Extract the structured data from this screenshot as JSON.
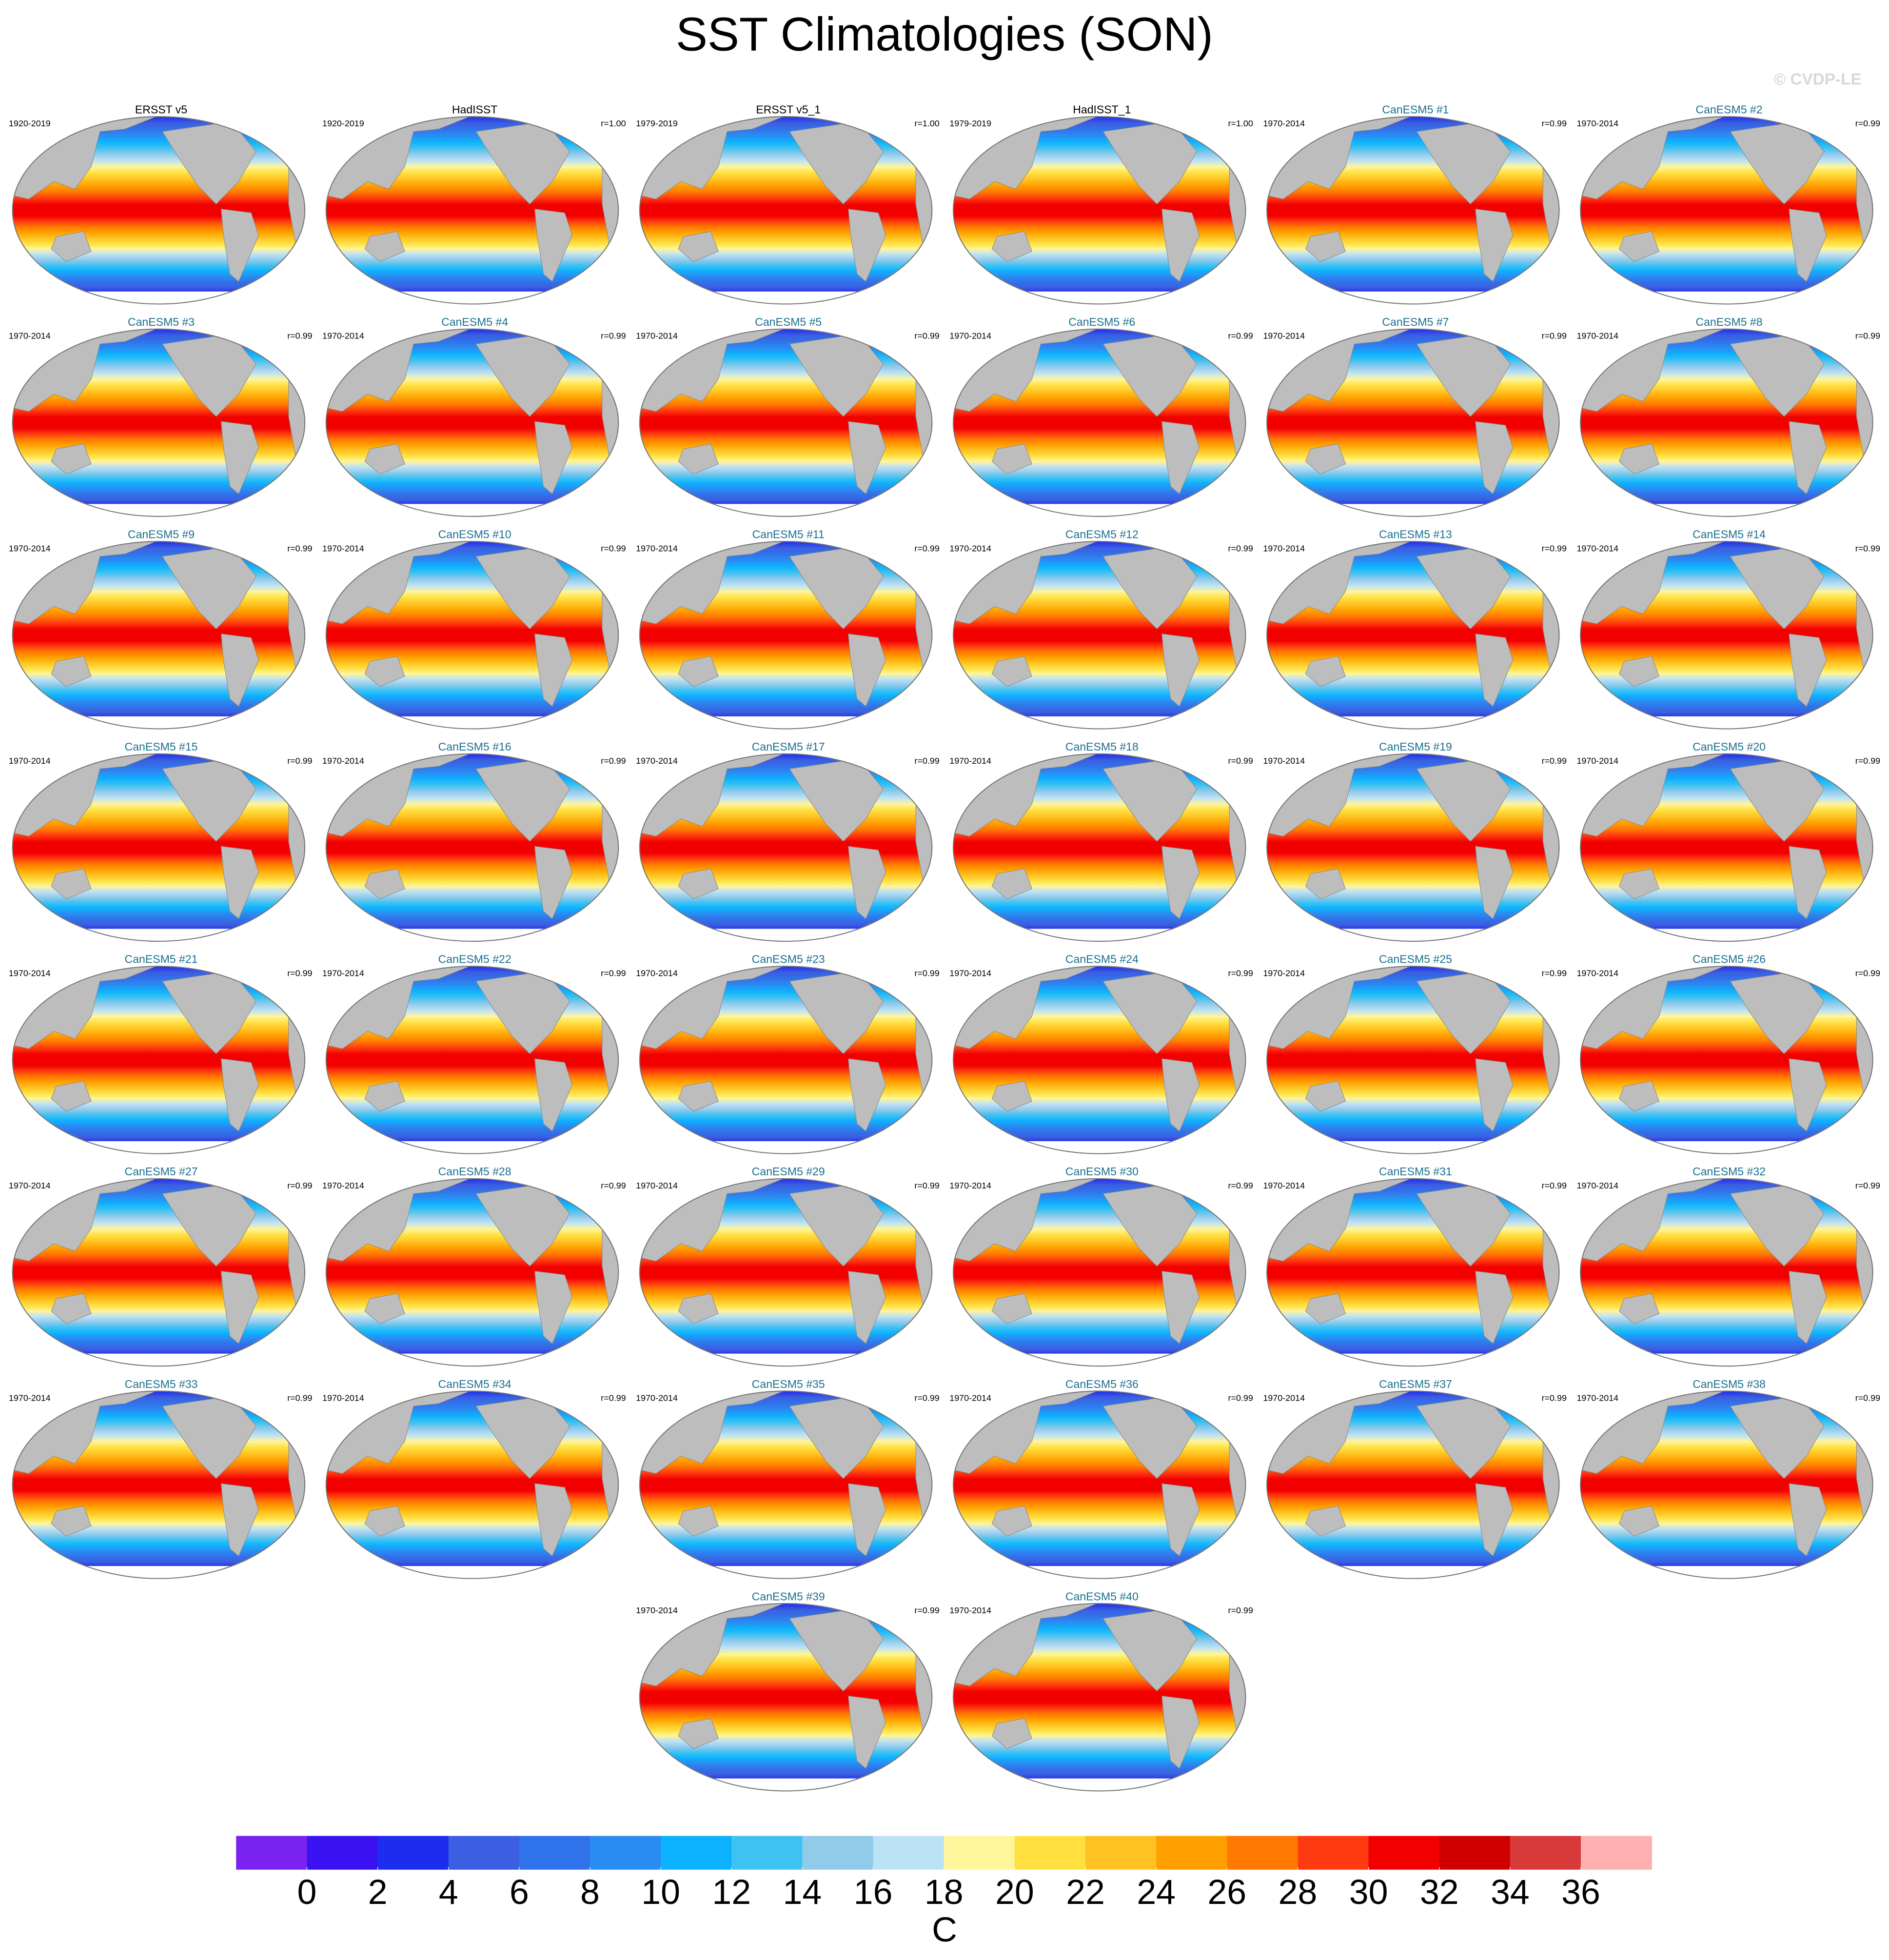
{
  "chart_data": {
    "type": "map-grid",
    "title": "SST Climatologies (SON)",
    "credit": "© CVDP-LE",
    "panels": [
      {
        "title": "ERSST v5",
        "period": "1920-2019",
        "title_color": "#000000"
      },
      {
        "title": "HadISST",
        "period": "1920-2019",
        "r": "r=1.00",
        "title_color": "#000000"
      },
      {
        "title": "ERSST v5_1",
        "period": "1979-2019",
        "r": "r=1.00",
        "title_color": "#000000"
      },
      {
        "title": "HadISST_1",
        "period": "1979-2019",
        "r": "r=1.00",
        "title_color": "#000000"
      },
      {
        "title": "CanESM5 #1",
        "period": "1970-2014",
        "r": "r=0.99",
        "title_color": "#1a6f8f"
      },
      {
        "title": "CanESM5 #2",
        "period": "1970-2014",
        "r": "r=0.99",
        "title_color": "#1a6f8f"
      },
      {
        "title": "CanESM5 #3",
        "period": "1970-2014",
        "r": "r=0.99",
        "title_color": "#1a6f8f"
      },
      {
        "title": "CanESM5 #4",
        "period": "1970-2014",
        "r": "r=0.99",
        "title_color": "#1a6f8f"
      },
      {
        "title": "CanESM5 #5",
        "period": "1970-2014",
        "r": "r=0.99",
        "title_color": "#1a6f8f"
      },
      {
        "title": "CanESM5 #6",
        "period": "1970-2014",
        "r": "r=0.99",
        "title_color": "#1a6f8f"
      },
      {
        "title": "CanESM5 #7",
        "period": "1970-2014",
        "r": "r=0.99",
        "title_color": "#1a6f8f"
      },
      {
        "title": "CanESM5 #8",
        "period": "1970-2014",
        "r": "r=0.99",
        "title_color": "#1a6f8f"
      },
      {
        "title": "CanESM5 #9",
        "period": "1970-2014",
        "r": "r=0.99",
        "title_color": "#1a6f8f"
      },
      {
        "title": "CanESM5 #10",
        "period": "1970-2014",
        "r": "r=0.99",
        "title_color": "#1a6f8f"
      },
      {
        "title": "CanESM5 #11",
        "period": "1970-2014",
        "r": "r=0.99",
        "title_color": "#1a6f8f"
      },
      {
        "title": "CanESM5 #12",
        "period": "1970-2014",
        "r": "r=0.99",
        "title_color": "#1a6f8f"
      },
      {
        "title": "CanESM5 #13",
        "period": "1970-2014",
        "r": "r=0.99",
        "title_color": "#1a6f8f"
      },
      {
        "title": "CanESM5 #14",
        "period": "1970-2014",
        "r": "r=0.99",
        "title_color": "#1a6f8f"
      },
      {
        "title": "CanESM5 #15",
        "period": "1970-2014",
        "r": "r=0.99",
        "title_color": "#1a6f8f"
      },
      {
        "title": "CanESM5 #16",
        "period": "1970-2014",
        "r": "r=0.99",
        "title_color": "#1a6f8f"
      },
      {
        "title": "CanESM5 #17",
        "period": "1970-2014",
        "r": "r=0.99",
        "title_color": "#1a6f8f"
      },
      {
        "title": "CanESM5 #18",
        "period": "1970-2014",
        "r": "r=0.99",
        "title_color": "#1a6f8f"
      },
      {
        "title": "CanESM5 #19",
        "period": "1970-2014",
        "r": "r=0.99",
        "title_color": "#1a6f8f"
      },
      {
        "title": "CanESM5 #20",
        "period": "1970-2014",
        "r": "r=0.99",
        "title_color": "#1a6f8f"
      },
      {
        "title": "CanESM5 #21",
        "period": "1970-2014",
        "r": "r=0.99",
        "title_color": "#1a6f8f"
      },
      {
        "title": "CanESM5 #22",
        "period": "1970-2014",
        "r": "r=0.99",
        "title_color": "#1a6f8f"
      },
      {
        "title": "CanESM5 #23",
        "period": "1970-2014",
        "r": "r=0.99",
        "title_color": "#1a6f8f"
      },
      {
        "title": "CanESM5 #24",
        "period": "1970-2014",
        "r": "r=0.99",
        "title_color": "#1a6f8f"
      },
      {
        "title": "CanESM5 #25",
        "period": "1970-2014",
        "r": "r=0.99",
        "title_color": "#1a6f8f"
      },
      {
        "title": "CanESM5 #26",
        "period": "1970-2014",
        "r": "r=0.99",
        "title_color": "#1a6f8f"
      },
      {
        "title": "CanESM5 #27",
        "period": "1970-2014",
        "r": "r=0.99",
        "title_color": "#1a6f8f"
      },
      {
        "title": "CanESM5 #28",
        "period": "1970-2014",
        "r": "r=0.99",
        "title_color": "#1a6f8f"
      },
      {
        "title": "CanESM5 #29",
        "period": "1970-2014",
        "r": "r=0.99",
        "title_color": "#1a6f8f"
      },
      {
        "title": "CanESM5 #30",
        "period": "1970-2014",
        "r": "r=0.99",
        "title_color": "#1a6f8f"
      },
      {
        "title": "CanESM5 #31",
        "period": "1970-2014",
        "r": "r=0.99",
        "title_color": "#1a6f8f"
      },
      {
        "title": "CanESM5 #32",
        "period": "1970-2014",
        "r": "r=0.99",
        "title_color": "#1a6f8f"
      },
      {
        "title": "CanESM5 #33",
        "period": "1970-2014",
        "r": "r=0.99",
        "title_color": "#1a6f8f"
      },
      {
        "title": "CanESM5 #34",
        "period": "1970-2014",
        "r": "r=0.99",
        "title_color": "#1a6f8f"
      },
      {
        "title": "CanESM5 #35",
        "period": "1970-2014",
        "r": "r=0.99",
        "title_color": "#1a6f8f"
      },
      {
        "title": "CanESM5 #36",
        "period": "1970-2014",
        "r": "r=0.99",
        "title_color": "#1a6f8f"
      },
      {
        "title": "CanESM5 #37",
        "period": "1970-2014",
        "r": "r=0.99",
        "title_color": "#1a6f8f"
      },
      {
        "title": "CanESM5 #38",
        "period": "1970-2014",
        "r": "r=0.99",
        "title_color": "#1a6f8f"
      },
      {
        "title": "CanESM5 #39",
        "period": "1970-2014",
        "r": "r=0.99",
        "title_color": "#1a6f8f"
      },
      {
        "title": "CanESM5 #40",
        "period": "1970-2014",
        "r": "r=0.99",
        "title_color": "#1a6f8f"
      }
    ],
    "colorbar": {
      "label": "C",
      "lim": [
        -2,
        38
      ],
      "ticks": [
        0,
        2,
        4,
        6,
        8,
        10,
        12,
        14,
        16,
        18,
        20,
        22,
        24,
        26,
        28,
        30,
        32,
        34,
        36
      ],
      "colors": [
        "#7a22ee",
        "#3a12f2",
        "#1e2cee",
        "#3c5ee0",
        "#3072ea",
        "#2a8cf2",
        "#0cb2ff",
        "#3ec2f2",
        "#92caea",
        "#bce2f6",
        "#fff59a",
        "#ffe040",
        "#ffc222",
        "#ffa000",
        "#ff7800",
        "#ff3a10",
        "#f20000",
        "#d00000",
        "#d83a3a",
        "#ffb0b0"
      ]
    }
  }
}
